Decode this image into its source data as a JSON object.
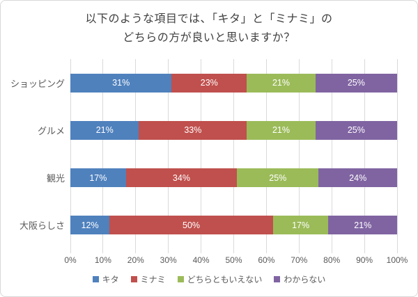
{
  "title": {
    "line1": "以下のような項目では、「キタ」と「ミナミ」の",
    "line2": "どちらの方が良いと思いますか？"
  },
  "chart_data": {
    "type": "bar",
    "stacked": true,
    "orientation": "horizontal",
    "title": "以下のような項目では、「キタ」と「ミナミ」の どちらの方が良いと思いますか？",
    "categories": [
      "ショッピング",
      "グルメ",
      "観光",
      "大阪らしさ"
    ],
    "series": [
      {
        "name": "キタ",
        "color": "#4f81bd",
        "values": [
          31,
          21,
          17,
          12
        ]
      },
      {
        "name": "ミナミ",
        "color": "#c0504d",
        "values": [
          23,
          33,
          34,
          50
        ]
      },
      {
        "name": "どちらともいえない",
        "color": "#9bbb59",
        "values": [
          21,
          21,
          25,
          17
        ]
      },
      {
        "name": "わからない",
        "color": "#8064a2",
        "values": [
          25,
          25,
          24,
          21
        ]
      }
    ],
    "value_suffix": "%",
    "data_labels": true,
    "xlim": [
      0,
      100
    ],
    "x_ticks": [
      0,
      10,
      20,
      30,
      40,
      50,
      60,
      70,
      80,
      90,
      100
    ],
    "x_tick_labels": [
      "0%",
      "10%",
      "20%",
      "30%",
      "40%",
      "50%",
      "60%",
      "70%",
      "80%",
      "90%",
      "100%"
    ],
    "grid": "vertical",
    "legend_position": "bottom",
    "colors": {
      "grid": "#d9d9d9",
      "axis_text": "#595959",
      "category_text": "#595959",
      "title_text": "#404040",
      "data_label_text": "#ffffff",
      "frame_border": "#d8d8d8",
      "background": "#ffffff"
    }
  }
}
